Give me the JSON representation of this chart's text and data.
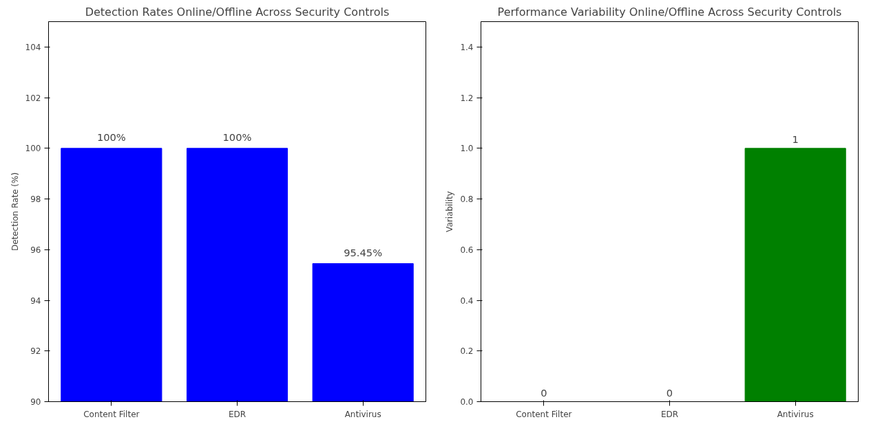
{
  "chart_data": [
    {
      "type": "bar",
      "title": "Detection Rates Online/Offline Across Security Controls",
      "ylabel": "Detection Rate (%)",
      "categories": [
        "Content Filter",
        "EDR",
        "Antivirus"
      ],
      "series": [
        {
          "color": "#0000ff",
          "values": [
            100,
            100,
            95.45
          ],
          "value_labels": [
            "100%",
            "100%",
            "95.45%"
          ]
        }
      ],
      "ylim": [
        90,
        105
      ],
      "yticks": [
        90,
        92,
        94,
        96,
        98,
        100,
        102,
        104
      ],
      "grid": false
    },
    {
      "type": "bar",
      "title": "Performance Variability Online/Offline Across Security Controls",
      "ylabel": "Variability",
      "categories": [
        "Content Filter",
        "EDR",
        "Antivirus"
      ],
      "series": [
        {
          "color": "#008000",
          "values": [
            0,
            0,
            1
          ],
          "value_labels": [
            "0",
            "0",
            "1"
          ]
        }
      ],
      "ylim": [
        0,
        1.5
      ],
      "yticks": [
        {
          "value": 0,
          "label": "0.0"
        },
        {
          "value": 0.2,
          "label": "0.2"
        },
        {
          "value": 0.4,
          "label": "0.4"
        },
        {
          "value": 0.6,
          "label": "0.6"
        },
        {
          "value": 0.8,
          "label": "0.8"
        },
        {
          "value": 1.0,
          "label": "1.0"
        },
        {
          "value": 1.2,
          "label": "1.2"
        },
        {
          "value": 1.4,
          "label": "1.4"
        }
      ],
      "grid": false
    }
  ]
}
